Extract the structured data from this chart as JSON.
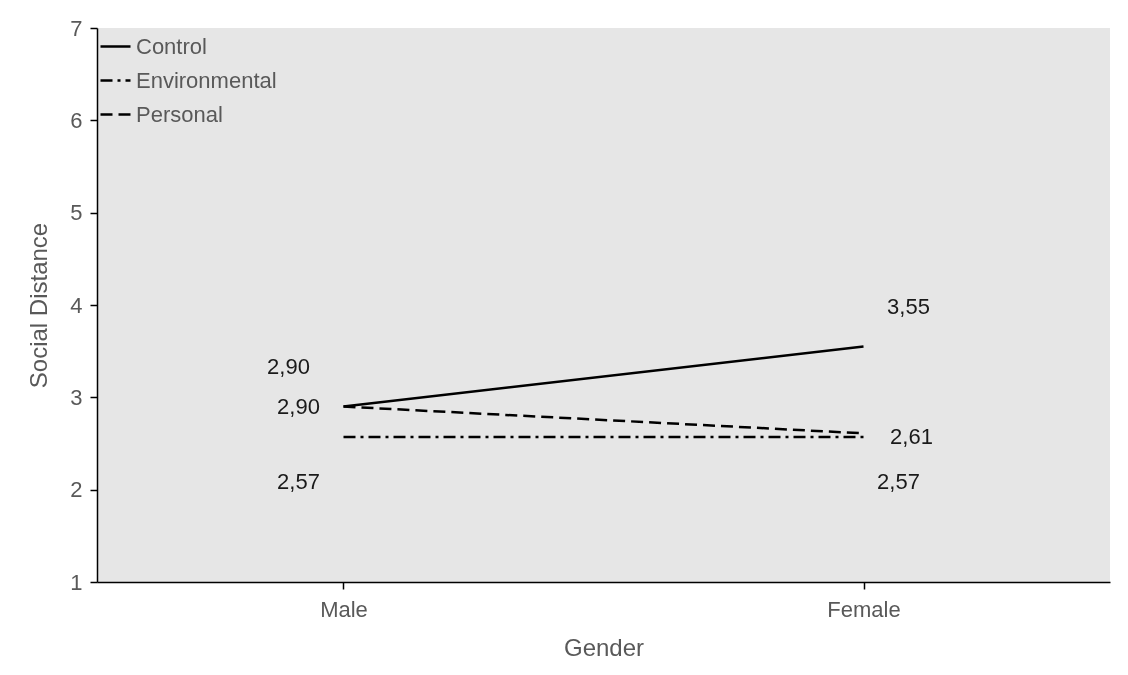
{
  "chart_data": {
    "type": "line",
    "xlabel": "Gender",
    "ylabel": "Social Distance",
    "categories": [
      "Male",
      "Female"
    ],
    "series": [
      {
        "name": "Control",
        "color": "#000000",
        "line_style": "solid",
        "values": [
          2.9,
          3.55
        ],
        "value_labels": [
          "2,90",
          "3,55"
        ]
      },
      {
        "name": "Environmental",
        "color": "#000000",
        "line_style": "dashdot",
        "values": [
          2.57,
          2.57
        ],
        "value_labels": [
          "2,57",
          "2,57"
        ]
      },
      {
        "name": "Personal",
        "color": "#000000",
        "line_style": "dashed",
        "values": [
          2.9,
          2.61
        ],
        "value_labels": [
          "2,90",
          "2,61"
        ]
      }
    ],
    "ylim": [
      1,
      7
    ],
    "yticks": [
      1,
      2,
      3,
      4,
      5,
      6,
      7
    ],
    "grid": false,
    "legend": "top left",
    "marker": "none"
  }
}
